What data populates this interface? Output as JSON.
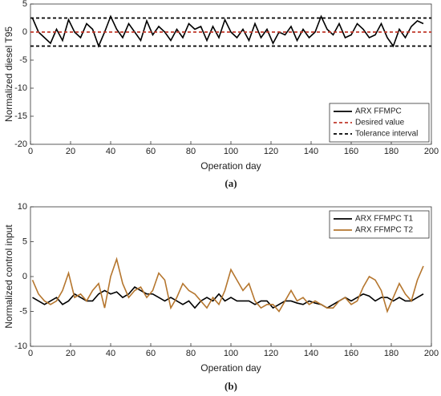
{
  "chart_data": [
    {
      "type": "line",
      "ylabel": "Normalized diesel T95",
      "xlabel": "Operation day",
      "caption": "(a)",
      "xlim": [
        0,
        200
      ],
      "xticks": [
        0,
        20,
        40,
        60,
        80,
        100,
        120,
        140,
        160,
        180,
        200
      ],
      "ylim": [
        -20,
        5
      ],
      "yticks": [
        -20,
        -15,
        -10,
        -5,
        0,
        5
      ],
      "grid": false,
      "legend": "lower right",
      "x": [
        1,
        4,
        7,
        10,
        13,
        16,
        19,
        22,
        25,
        28,
        31,
        34,
        37,
        40,
        43,
        46,
        49,
        52,
        55,
        58,
        61,
        64,
        67,
        70,
        73,
        76,
        79,
        82,
        85,
        88,
        91,
        94,
        97,
        100,
        103,
        106,
        109,
        112,
        115,
        118,
        121,
        124,
        127,
        130,
        133,
        136,
        139,
        142,
        145,
        148,
        151,
        154,
        157,
        160,
        163,
        166,
        169,
        172,
        175,
        178,
        181,
        184,
        187,
        190,
        193,
        196
      ],
      "series": [
        {
          "name": "ARX FFMPC",
          "color": "#000000",
          "dash": false,
          "values": [
            2.5,
            0,
            -1,
            -2,
            0.5,
            -1.5,
            2.2,
            0,
            -1,
            1.5,
            0.5,
            -2.5,
            0,
            2.8,
            0.5,
            -1,
            1.5,
            0,
            -1.5,
            2,
            -0.5,
            1,
            0,
            -1.5,
            0.5,
            -1,
            1.5,
            0.5,
            1,
            -1.5,
            1,
            -1,
            2.2,
            0,
            -1,
            0.5,
            -1.5,
            1.5,
            -1,
            0.5,
            -2,
            0,
            -0.5,
            1,
            -1.5,
            0.5,
            -1,
            0,
            2.8,
            0.5,
            -0.5,
            1.5,
            -1,
            -0.5,
            1.5,
            0.5,
            -1,
            -0.5,
            1.5,
            -1,
            -2.5,
            0.5,
            -1,
            1,
            2,
            1.5
          ]
        },
        {
          "name": "Desired value",
          "color": "#c0392b",
          "dash": true,
          "x": [
            0,
            200
          ],
          "values": [
            0,
            0
          ]
        },
        {
          "name": "Tolerance interval",
          "color": "#000000",
          "dash": true,
          "x": [
            0,
            200,
            null,
            0,
            200
          ],
          "values": [
            2.5,
            2.5,
            null,
            -2.5,
            -2.5
          ]
        }
      ]
    },
    {
      "type": "line",
      "ylabel": "Normalized control input",
      "xlabel": "Operation day",
      "caption": "(b)",
      "xlim": [
        0,
        200
      ],
      "xticks": [
        0,
        20,
        40,
        60,
        80,
        100,
        120,
        140,
        160,
        180,
        200
      ],
      "ylim": [
        -10,
        10
      ],
      "yticks": [
        -10,
        -5,
        0,
        5,
        10
      ],
      "grid": false,
      "legend": "upper right",
      "x": [
        1,
        4,
        7,
        10,
        13,
        16,
        19,
        22,
        25,
        28,
        31,
        34,
        37,
        40,
        43,
        46,
        49,
        52,
        55,
        58,
        61,
        64,
        67,
        70,
        73,
        76,
        79,
        82,
        85,
        88,
        91,
        94,
        97,
        100,
        103,
        106,
        109,
        112,
        115,
        118,
        121,
        124,
        127,
        130,
        133,
        136,
        139,
        142,
        145,
        148,
        151,
        154,
        157,
        160,
        163,
        166,
        169,
        172,
        175,
        178,
        181,
        184,
        187,
        190,
        193,
        196
      ],
      "series": [
        {
          "name": "ARX FFMPC T1",
          "color": "#000000",
          "dash": false,
          "values": [
            -3,
            -3.5,
            -4,
            -3.5,
            -3,
            -4,
            -3.5,
            -2.5,
            -3,
            -3.5,
            -3.5,
            -2.5,
            -2,
            -2.5,
            -2.2,
            -3,
            -2.5,
            -1.5,
            -2,
            -2.5,
            -2.5,
            -3,
            -3.5,
            -3,
            -3.5,
            -4,
            -3.5,
            -4.5,
            -3.5,
            -3,
            -3.5,
            -2.5,
            -3.5,
            -3,
            -3.5,
            -3.5,
            -3.5,
            -4,
            -3.5,
            -3.5,
            -4.5,
            -4,
            -3.5,
            -3.5,
            -3.8,
            -4,
            -3.5,
            -3.8,
            -4,
            -4.5,
            -4,
            -3.5,
            -3,
            -3.5,
            -3,
            -2.5,
            -2.8,
            -3.5,
            -3,
            -3,
            -3.5,
            -3,
            -3.5,
            -3.5,
            -3,
            -2.5
          ]
        },
        {
          "name": "ARX FFMPC T2",
          "color": "#b5762e",
          "dash": false,
          "values": [
            -0.5,
            -2.5,
            -3.5,
            -4,
            -3.5,
            -2,
            0.5,
            -3,
            -2.5,
            -3.5,
            -2,
            -1,
            -4.5,
            0,
            2.5,
            -1,
            -3,
            -2,
            -1.5,
            -3,
            -2,
            0.5,
            -0.5,
            -4.5,
            -3,
            -1,
            -2,
            -2.5,
            -3.5,
            -4.5,
            -3,
            -4,
            -2,
            1,
            -0.5,
            -2,
            -1,
            -3.5,
            -4.5,
            -4,
            -4,
            -5,
            -3.5,
            -2,
            -3.5,
            -3,
            -4,
            -3.5,
            -4,
            -4.5,
            -4.5,
            -3.5,
            -3,
            -4,
            -3.5,
            -1.5,
            0,
            -0.5,
            -2,
            -5,
            -3,
            -1,
            -2.5,
            -3.5,
            -0.5,
            1.5
          ]
        }
      ]
    }
  ]
}
